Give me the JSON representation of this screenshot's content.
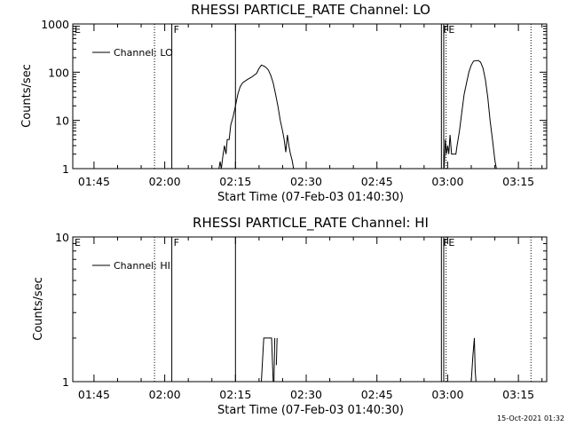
{
  "footer": {
    "timestamp": "15-Oct-2021 01:32"
  },
  "colors": {
    "background": "#ffffff",
    "foreground": "#000000"
  },
  "chart_data": [
    {
      "type": "line",
      "title": "RHESSI PARTICLE_RATE Channel: LO",
      "xlabel": "Start Time (07-Feb-03 01:40:30)",
      "ylabel": "Counts/sec",
      "legend": {
        "label": "Channel: LO",
        "placement": "top-left"
      },
      "yscale": "log",
      "ylim": [
        1,
        1000
      ],
      "xlim": [
        "01:40:30",
        "03:21:00"
      ],
      "xticks": [
        "01:45",
        "02:00",
        "02:15",
        "02:30",
        "02:45",
        "03:00",
        "03:15"
      ],
      "yticks": [
        "1",
        "10",
        "100",
        "1000"
      ],
      "markers": [
        {
          "label": "E",
          "time": "01:40:30",
          "style": "solid"
        },
        {
          "label": "F",
          "time": "02:01:30",
          "style": "solid"
        },
        {
          "label": "",
          "time": "01:57:50",
          "style": "dotted"
        },
        {
          "label": "",
          "time": "02:15:00",
          "style": "solid"
        },
        {
          "label": "F",
          "time": "02:58:40",
          "style": "solid"
        },
        {
          "label": "E",
          "time": "02:59:10",
          "style": "solid"
        },
        {
          "label": "",
          "time": "02:59:40",
          "style": "dotted"
        },
        {
          "label": "",
          "time": "03:17:40",
          "style": "dotted"
        }
      ],
      "series": [
        {
          "segments": [
            [
              [
                "02:11:30",
                1
              ],
              [
                "02:11:45",
                1.4
              ],
              [
                "02:12:00",
                1
              ],
              [
                "02:12:20",
                1.8
              ],
              [
                "02:12:40",
                3
              ],
              [
                "02:13:00",
                2
              ],
              [
                "02:13:15",
                4
              ],
              [
                "02:13:40",
                4
              ],
              [
                "02:14:00",
                8
              ],
              [
                "02:14:30",
                12
              ],
              [
                "02:15:00",
                20
              ],
              [
                "02:15:30",
                35
              ],
              [
                "02:16:00",
                50
              ],
              [
                "02:16:30",
                60
              ],
              [
                "02:17:30",
                70
              ],
              [
                "02:18:30",
                80
              ],
              [
                "02:19:30",
                95
              ],
              [
                "02:20:00",
                120
              ],
              [
                "02:20:30",
                140
              ],
              [
                "02:21:00",
                135
              ],
              [
                "02:21:30",
                125
              ],
              [
                "02:22:00",
                110
              ],
              [
                "02:22:30",
                85
              ],
              [
                "02:23:00",
                60
              ],
              [
                "02:23:30",
                35
              ],
              [
                "02:24:00",
                20
              ],
              [
                "02:24:30",
                10
              ],
              [
                "02:25:00",
                6
              ],
              [
                "02:25:20",
                4
              ],
              [
                "02:25:40",
                2.2
              ],
              [
                "02:26:00",
                5
              ],
              [
                "02:26:20",
                3
              ],
              [
                "02:26:40",
                2
              ],
              [
                "02:27:00",
                1.5
              ],
              [
                "02:27:20",
                1
              ]
            ],
            [
              [
                "02:59:15",
                1
              ],
              [
                "02:59:30",
                4
              ],
              [
                "02:59:45",
                2
              ],
              [
                "03:00:00",
                3
              ],
              [
                "03:00:15",
                2
              ],
              [
                "03:00:30",
                5
              ],
              [
                "03:00:50",
                2
              ],
              [
                "03:01:15",
                2
              ],
              [
                "03:01:45",
                2
              ],
              [
                "03:02:00",
                3
              ],
              [
                "03:02:30",
                6
              ],
              [
                "03:03:00",
                15
              ],
              [
                "03:03:30",
                35
              ],
              [
                "03:04:00",
                60
              ],
              [
                "03:04:30",
                100
              ],
              [
                "03:05:00",
                140
              ],
              [
                "03:05:30",
                170
              ],
              [
                "03:06:30",
                175
              ],
              [
                "03:07:00",
                160
              ],
              [
                "03:07:30",
                120
              ],
              [
                "03:08:00",
                70
              ],
              [
                "03:08:30",
                30
              ],
              [
                "03:09:00",
                10
              ],
              [
                "03:09:30",
                4
              ],
              [
                "03:10:00",
                1.5
              ],
              [
                "03:10:20",
                1
              ]
            ]
          ]
        }
      ]
    },
    {
      "type": "line",
      "title": "RHESSI PARTICLE_RATE Channel: HI",
      "xlabel": "Start Time (07-Feb-03 01:40:30)",
      "ylabel": "Counts/sec",
      "legend": {
        "label": "Channel: HI",
        "placement": "top-left"
      },
      "yscale": "log",
      "ylim": [
        1,
        10
      ],
      "xlim": [
        "01:40:30",
        "03:21:00"
      ],
      "xticks": [
        "01:45",
        "02:00",
        "02:15",
        "02:30",
        "02:45",
        "03:00",
        "03:15"
      ],
      "yticks": [
        "1",
        "10"
      ],
      "markers": [
        {
          "label": "E",
          "time": "01:40:30",
          "style": "solid"
        },
        {
          "label": "F",
          "time": "02:01:30",
          "style": "solid"
        },
        {
          "label": "",
          "time": "01:57:50",
          "style": "dotted"
        },
        {
          "label": "",
          "time": "02:15:00",
          "style": "solid"
        },
        {
          "label": "F",
          "time": "02:58:40",
          "style": "solid"
        },
        {
          "label": "E",
          "time": "02:59:10",
          "style": "solid"
        },
        {
          "label": "",
          "time": "02:59:40",
          "style": "dotted"
        },
        {
          "label": "",
          "time": "03:17:40",
          "style": "dotted"
        }
      ],
      "series": [
        {
          "segments": [
            [
              [
                "02:20:30",
                1
              ],
              [
                "02:21:00",
                2
              ],
              [
                "02:22:40",
                2
              ],
              [
                "02:23:00",
                1
              ]
            ],
            [
              [
                "02:23:10",
                1
              ],
              [
                "02:23:20",
                2
              ]
            ],
            [
              [
                "02:23:40",
                1.3
              ],
              [
                "02:23:50",
                2
              ]
            ],
            [
              [
                "03:05:00",
                1
              ],
              [
                "03:05:20",
                1.5
              ],
              [
                "03:05:40",
                2
              ],
              [
                "03:05:50",
                1.2
              ],
              [
                "03:06:00",
                1
              ]
            ]
          ]
        }
      ]
    }
  ]
}
